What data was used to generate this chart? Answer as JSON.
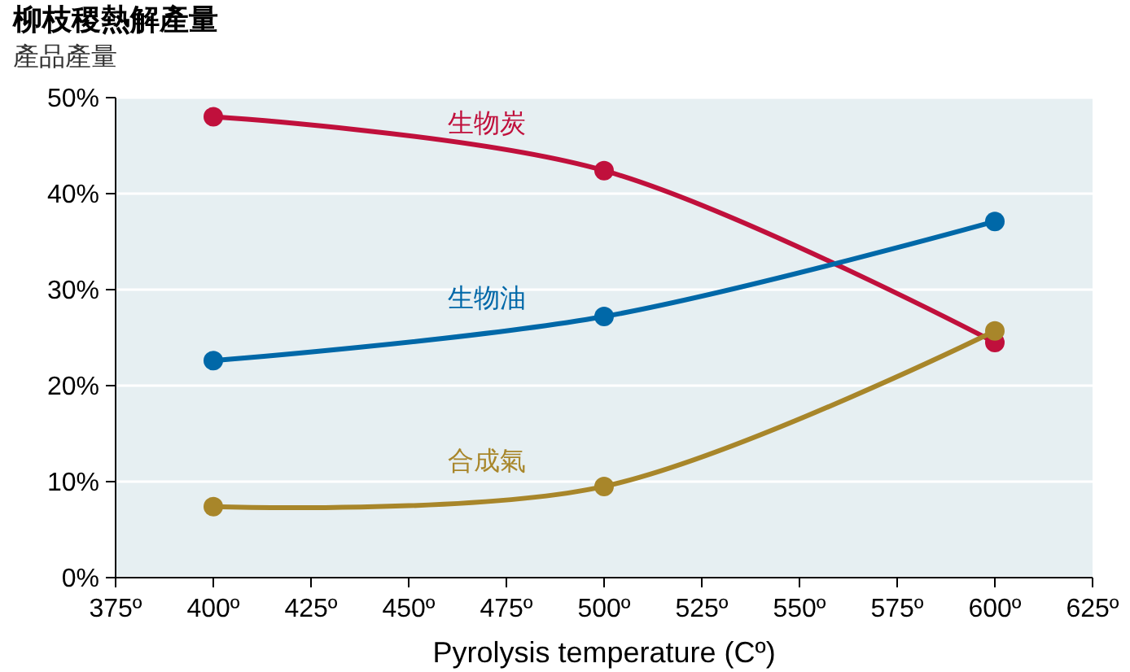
{
  "chart_data": {
    "type": "line",
    "title": "柳枝稷熱解產量",
    "subtitle": "產品產量",
    "xlabel": "Pyrolysis temperature (Cº)",
    "x": [
      400,
      500,
      600
    ],
    "series": [
      {
        "name": "生物炭",
        "color": "#c0103c",
        "values": [
          48,
          42.4,
          24.5
        ]
      },
      {
        "name": "生物油",
        "color": "#0068a8",
        "values": [
          22.6,
          27.2,
          37.1
        ]
      },
      {
        "name": "合成氣",
        "color": "#a8862a",
        "values": [
          7.4,
          9.5,
          25.7
        ]
      }
    ],
    "xlim": [
      375,
      625
    ],
    "xticks": [
      {
        "value": 375,
        "label": "375º"
      },
      {
        "value": 400,
        "label": "400º"
      },
      {
        "value": 425,
        "label": "425º"
      },
      {
        "value": 450,
        "label": "450º"
      },
      {
        "value": 475,
        "label": "475º"
      },
      {
        "value": 500,
        "label": "500º"
      },
      {
        "value": 525,
        "label": "525º"
      },
      {
        "value": 550,
        "label": "550º"
      },
      {
        "value": 575,
        "label": "575º"
      },
      {
        "value": 600,
        "label": "600º"
      },
      {
        "value": 625,
        "label": "625º"
      }
    ],
    "ylim": [
      0,
      50
    ],
    "yticks": [
      {
        "value": 0,
        "label": "0%"
      },
      {
        "value": 10,
        "label": "10%"
      },
      {
        "value": 20,
        "label": "20%"
      },
      {
        "value": 30,
        "label": "30%"
      },
      {
        "value": 40,
        "label": "40%"
      },
      {
        "value": 50,
        "label": "50%"
      }
    ],
    "grid": "y",
    "legend": false,
    "marker": "circle",
    "line_style": "solid"
  }
}
